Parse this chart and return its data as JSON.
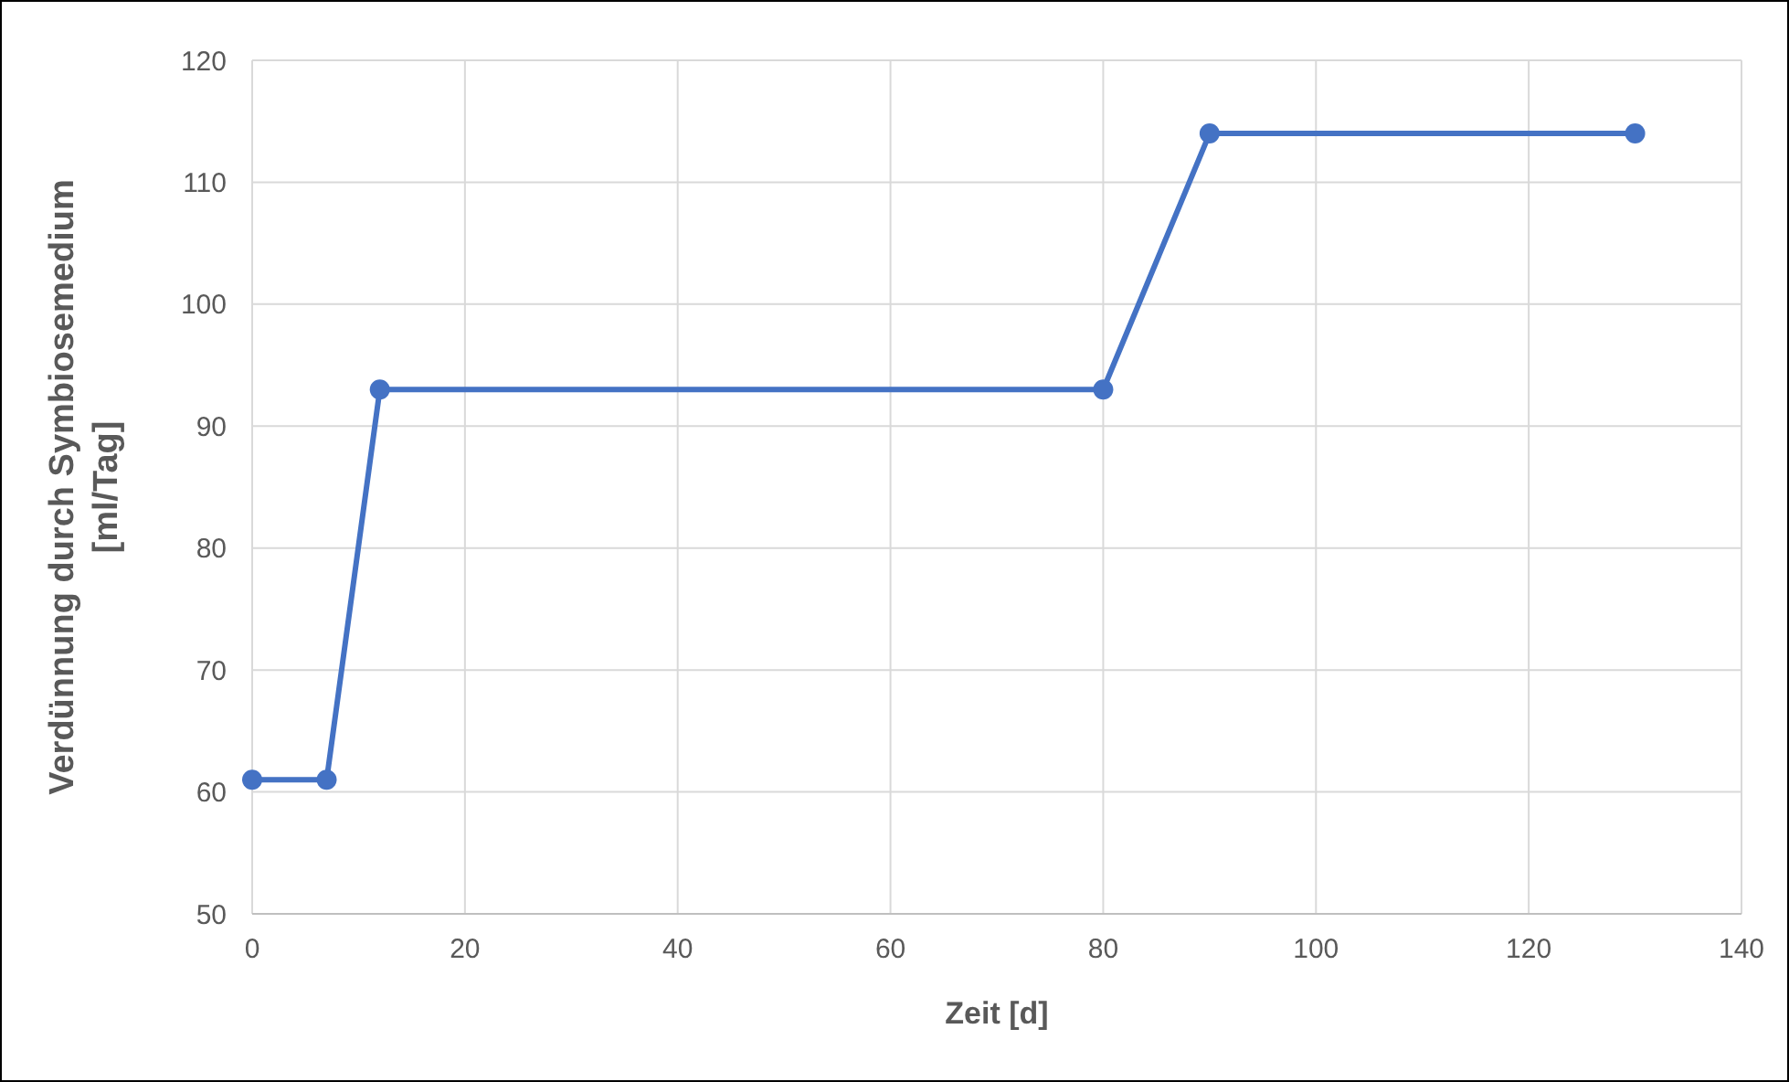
{
  "chart_data": {
    "type": "line",
    "xlabel": "Zeit [d]",
    "ylabel": "Verdünnung durch Symbiosemedium\n[ml/Tag]",
    "x": [
      0,
      7,
      12,
      80,
      90,
      130
    ],
    "series": [
      {
        "color": "#4472c4",
        "values": [
          61,
          61,
          93,
          93,
          114,
          114
        ]
      }
    ],
    "xlim": [
      0,
      140
    ],
    "xticks": [
      0,
      20,
      40,
      60,
      80,
      100,
      120,
      140
    ],
    "ylim": [
      50,
      120
    ],
    "yticks": [
      50,
      60,
      70,
      80,
      90,
      100,
      110,
      120
    ],
    "grid": true,
    "marker": "circle",
    "line_style": "solid"
  }
}
